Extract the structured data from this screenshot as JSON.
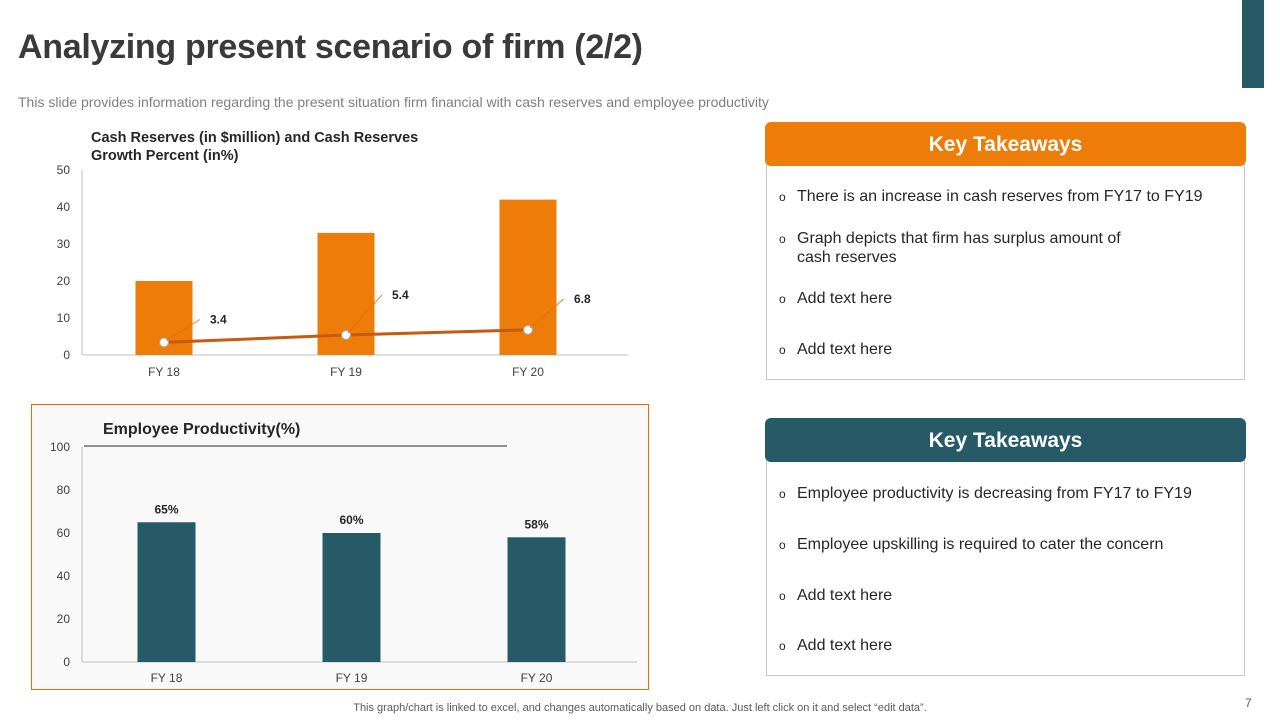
{
  "slide": {
    "title": "Analyzing present scenario of firm (2/2)",
    "subtitle": "This slide provides information regarding the present situation firm financial with cash reserves and employee productivity",
    "page_number": "7",
    "footnote": "This graph/chart is linked to excel, and changes automatically based on data. Just left click on it and select “edit data”.",
    "accent_color": "#265a66"
  },
  "chart_data": [
    {
      "type": "bar",
      "title": "Cash Reserves (in $million) and Cash Reserves Growth Percent (in%)",
      "categories": [
        "FY 18",
        "FY 19",
        "FY 20"
      ],
      "series": [
        {
          "values": [
            20,
            33,
            42
          ],
          "color": "#ed7d08"
        },
        {
          "type": "line",
          "values": [
            3.4,
            5.4,
            6.8
          ],
          "labels": [
            "3.4",
            "5.4",
            "6.8"
          ],
          "color": "#c55a11"
        }
      ],
      "ylim": [
        0,
        50
      ],
      "yticks": [
        "0",
        "10",
        "20",
        "30",
        "40",
        "50"
      ],
      "grid": false
    },
    {
      "type": "bar",
      "title": "Employee Productivity(%)",
      "categories": [
        "FY 18",
        "FY 19",
        "FY 20"
      ],
      "series": [
        {
          "values": [
            65,
            60,
            58
          ],
          "labels": [
            "65%",
            "60%",
            "58%"
          ],
          "color": "#265a66"
        }
      ],
      "ylim": [
        0,
        100
      ],
      "yticks": [
        "0",
        "20",
        "40",
        "60",
        "80",
        "100"
      ],
      "grid": false
    }
  ],
  "takeaways": [
    {
      "header": "Key Takeaways",
      "header_color": "#ed7d08",
      "items": [
        "There is an increase in cash reserves from FY17 to FY19",
        "Graph depicts that firm has surplus amount of cash reserves",
        "Add text here",
        "Add text here"
      ]
    },
    {
      "header": "Key Takeaways",
      "header_color": "#265a66",
      "items": [
        "Employee productivity is decreasing from FY17 to FY19",
        "Employee upskilling is required to cater the concern",
        "Add text here",
        "Add text here"
      ]
    }
  ]
}
